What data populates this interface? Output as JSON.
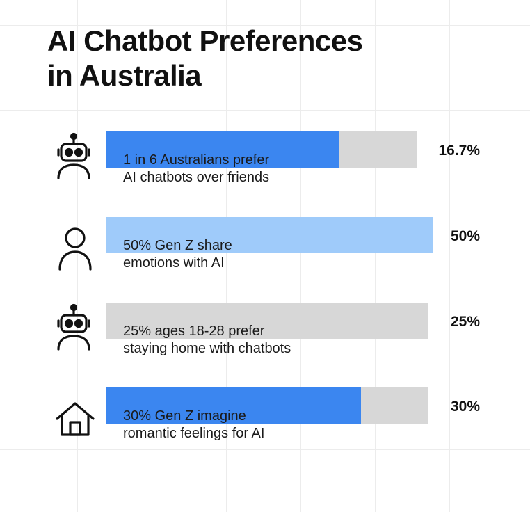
{
  "chart_data": {
    "type": "bar",
    "orientation": "horizontal",
    "title_lines": [
      "AI Chatbot Preferences",
      "in Australia"
    ],
    "grid": true,
    "xlim": [
      0,
      100
    ],
    "rows": [
      {
        "icon": "robot-icon",
        "line1": "1 in 6 Australians prefer",
        "line2": "AI chatbots over friends",
        "value": 16.7,
        "label": "16.7%",
        "fill_fraction": 0.75,
        "color": "#3b86f0"
      },
      {
        "icon": "person-icon",
        "line1": "50% Gen Z share",
        "line2": "emotions with AI",
        "value": 50,
        "label": "50%",
        "fill_fraction": 1.0,
        "color": "#9fcbfa"
      },
      {
        "icon": "robot-icon",
        "line1": "25% ages 18-28 prefer",
        "line2": "staying home with chatbots",
        "value": 25,
        "label": "25%",
        "fill_fraction": 0.0,
        "color": "#3b86f0"
      },
      {
        "icon": "house-icon",
        "line1": "30% Gen Z imagine",
        "line2": "romantic feelings for AI",
        "value": 30,
        "label": "30%",
        "fill_fraction": 0.79,
        "color": "#3b86f0"
      }
    ]
  },
  "colors": {
    "track": "#d7d7d7",
    "text": "#111111"
  }
}
